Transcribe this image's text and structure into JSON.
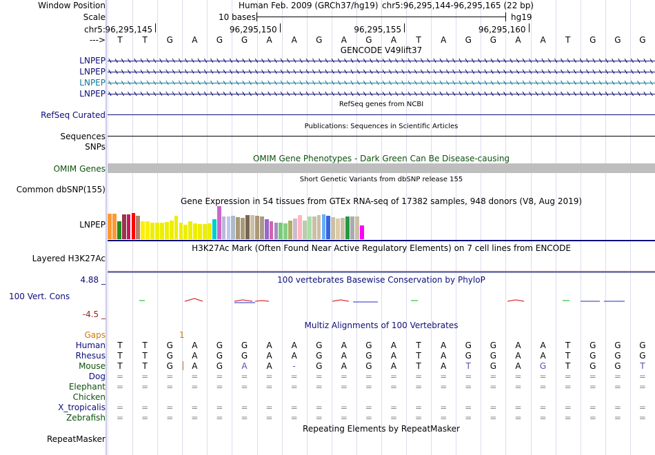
{
  "header": {
    "window_position_label": "Window Position",
    "assembly": "Human Feb. 2009 (GRCh37/hg19)",
    "position": "chr5:96,295,144-96,295,165 (22 bp)",
    "scale_label": "Scale",
    "scale_value": "10 bases",
    "scale_assembly": "hg19",
    "chrom_label": "chr5:",
    "coordinates": [
      "96,295,145",
      "96,295,150",
      "96,295,155",
      "96,295,160"
    ],
    "strand_label": "--->"
  },
  "bases": [
    "T",
    "T",
    "G",
    "A",
    "G",
    "G",
    "A",
    "A",
    "G",
    "A",
    "G",
    "A",
    "T",
    "A",
    "G",
    "G",
    "A",
    "A",
    "T",
    "G",
    "G",
    "G"
  ],
  "tracks": {
    "gencode": {
      "title": "GENCODE V49lift37",
      "items": [
        "LNPEP",
        "LNPEP",
        "LNPEP",
        "LNPEP"
      ],
      "colors": [
        "#0c0c78",
        "#0c0c78",
        "#0c7896",
        "#0c0c78"
      ]
    },
    "refseq": {
      "title": "RefSeq genes from NCBI",
      "label": "RefSeq Curated"
    },
    "publications": {
      "title": "Publications: Sequences in Scientific Articles",
      "label": "Sequences"
    },
    "snps": {
      "label": "SNPs"
    },
    "omim": {
      "title": "OMIM Gene Phenotypes - Dark Green Can Be Disease-causing",
      "label": "OMIM Genes"
    },
    "dbsnp": {
      "title": "Short Genetic Variants from dbSNP release 155",
      "label": "Common dbSNP(155)"
    },
    "gtex": {
      "title": "Gene Expression in 54 tissues from GTEx RNA-seq of 17382 samples, 948 donors (V8, Aug 2019)",
      "label": "LNPEP"
    },
    "h3k27ac": {
      "title": "H3K27Ac Mark (Often Found Near Active Regulatory Elements) on 7 cell lines from ENCODE",
      "label": "Layered H3K27Ac"
    },
    "phylop": {
      "title": "100 vertebrates Basewise Conservation by PhyloP",
      "label": "100 Vert. Cons",
      "max": "4.88 _",
      "min": "-4.5 _"
    },
    "multiz": {
      "title": "Multiz Alignments of 100 Vertebrates",
      "gaps_label": "Gaps",
      "gap_count": "1",
      "species": [
        {
          "name": "Human",
          "color": "#0c0c78",
          "seq": "TTGAGGAAGAGATAGGAATGGG"
        },
        {
          "name": "Rhesus",
          "color": "#0c0c78",
          "seq": "TTGAGGAAGAGATAGGAATGGG"
        },
        {
          "name": "Mouse",
          "color": "#0c500c",
          "seq": "TTGAGAA-GAGATATGAGTGGT"
        },
        {
          "name": "Dog",
          "color": "#0c0c78",
          "seq": "======================"
        },
        {
          "name": "Elephant",
          "color": "#0c500c",
          "seq": "======================"
        },
        {
          "name": "Chicken",
          "color": "#0c500c",
          "seq": "                      "
        },
        {
          "name": "X_tropicalis",
          "color": "#0c0c78",
          "seq": "======================"
        },
        {
          "name": "Zebrafish",
          "color": "#0c500c",
          "seq": "======================"
        }
      ]
    },
    "repeatmasker": {
      "title": "Repeating Elements by RepeatMasker",
      "label": "RepeatMasker"
    }
  },
  "chart_data": {
    "type": "bar",
    "title": "Gene Expression in 54 tissues from GTEx RNA-seq of 17382 samples, 948 donors (V8, Aug 2019)",
    "values": [
      0.78,
      0.78,
      0.55,
      0.76,
      0.74,
      0.8,
      0.7,
      0.55,
      0.55,
      0.5,
      0.5,
      0.5,
      0.52,
      0.56,
      0.7,
      0.5,
      0.44,
      0.54,
      0.48,
      0.46,
      0.46,
      0.48,
      0.6,
      1.0,
      0.68,
      0.68,
      0.7,
      0.66,
      0.64,
      0.72,
      0.72,
      0.7,
      0.68,
      0.6,
      0.55,
      0.5,
      0.5,
      0.48,
      0.56,
      0.62,
      0.72,
      0.56,
      0.68,
      0.68,
      0.72,
      0.74,
      0.7,
      0.66,
      0.62,
      0.64,
      0.68,
      0.68,
      0.68,
      0.42
    ],
    "colors": [
      "#ff9933",
      "#ff9933",
      "#228b22",
      "#99354d",
      "#c21a5a",
      "#ff0000",
      "#b08070",
      "#ffee00",
      "#ffee00",
      "#eeee00",
      "#eeee00",
      "#eeee00",
      "#eeee00",
      "#eeee00",
      "#eeee00",
      "#eeee00",
      "#eeee00",
      "#eeee00",
      "#eeee00",
      "#eeee00",
      "#eeee00",
      "#eeee00",
      "#00cdcd",
      "#cc66cc",
      "#bcb7d7",
      "#bcc6ee",
      "#aabbcc",
      "#aa9977",
      "#aa9977",
      "#776655",
      "#cbbfa5",
      "#aa9977",
      "#aa9988",
      "#9966cc",
      "#cc66aa",
      "#aa88cc",
      "#77cc77",
      "#88cc88",
      "#aab066",
      "#ccbbcc",
      "#ffb6c1",
      "#bbccaa",
      "#aaddaa",
      "#cbbfa5",
      "#cbbfa5",
      "#66aaff",
      "#3366dd",
      "#cbbfa5",
      "#ddccaa",
      "#cbbfa5",
      "#229944",
      "#aaaaaa",
      "#cbbfa5",
      "#ff00ff"
    ]
  }
}
